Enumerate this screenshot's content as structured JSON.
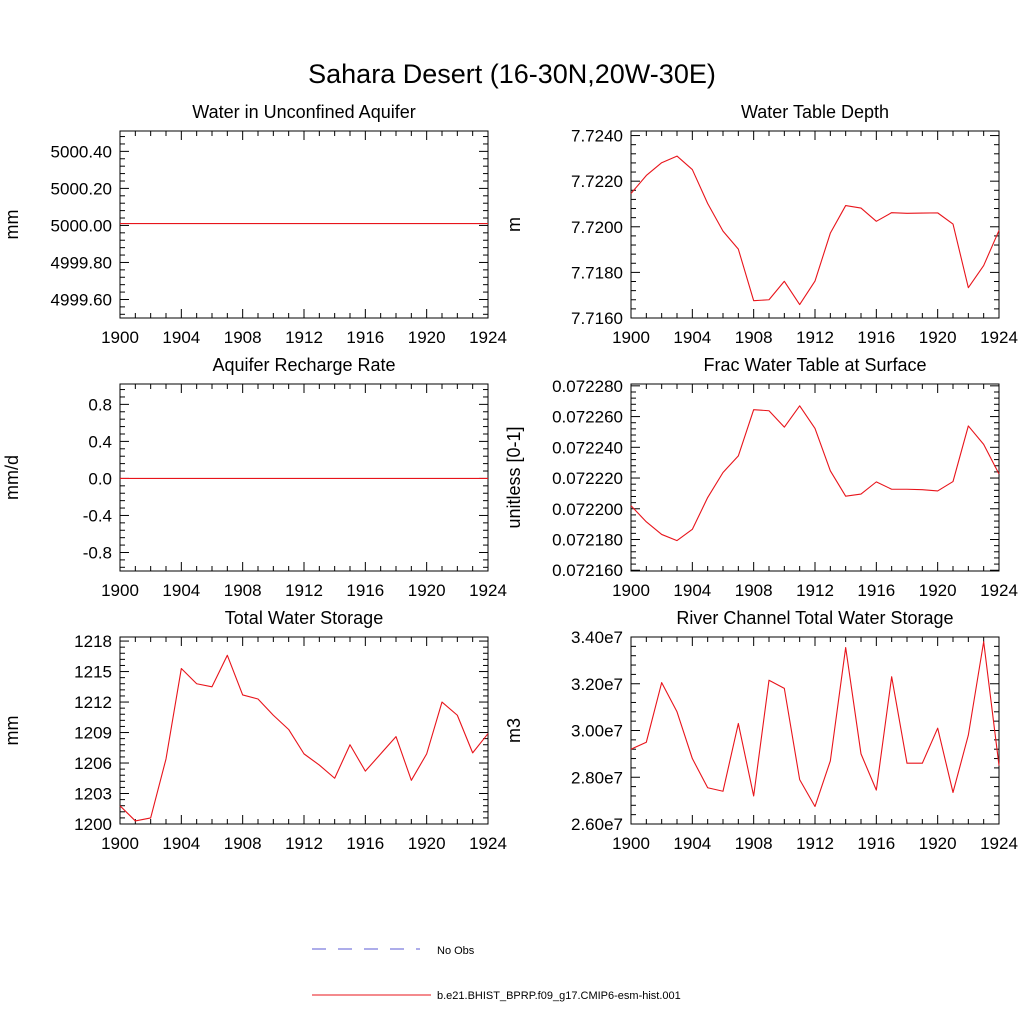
{
  "figure": {
    "title": "Sahara Desert (16-30N,20W-30E)",
    "series_color": "#e8141b",
    "obs_color": "#5b5bd6",
    "legend": [
      {
        "label": "No Obs",
        "style": "dashed",
        "color": "#5b5bd6"
      },
      {
        "label": "b.e21.BHIST_BPRP.f09_g17.CMIP6-esm-hist.001",
        "style": "solid",
        "color": "#e8141b"
      }
    ]
  },
  "chart_data": [
    {
      "type": "line",
      "title": "Water in Unconfined Aquifer",
      "ylabel": "mm",
      "xlim": [
        1900,
        1924
      ],
      "ylim": [
        4999.5,
        5000.51
      ],
      "xticks": [
        1900,
        1904,
        1908,
        1912,
        1916,
        1920,
        1924
      ],
      "yticks": [
        4999.6,
        4999.8,
        5000.0,
        5000.2,
        5000.4
      ],
      "ytick_labels": [
        "4999.60",
        "4999.80",
        "5000.00",
        "5000.20",
        "5000.40"
      ],
      "x": [
        1900,
        1924
      ],
      "series": [
        {
          "values": [
            5000.01,
            5000.01
          ]
        }
      ]
    },
    {
      "type": "line",
      "title": "Water Table Depth",
      "ylabel": "m",
      "xlim": [
        1900,
        1924
      ],
      "ylim": [
        7.716,
        7.7242
      ],
      "xticks": [
        1900,
        1904,
        1908,
        1912,
        1916,
        1920,
        1924
      ],
      "yticks": [
        7.716,
        7.718,
        7.72,
        7.722,
        7.724
      ],
      "ytick_labels": [
        "7.7160",
        "7.7180",
        "7.7200",
        "7.7220",
        "7.7240"
      ],
      "x": [
        1900,
        1901,
        1902,
        1903,
        1904,
        1905,
        1906,
        1907,
        1908,
        1909,
        1910,
        1911,
        1912,
        1913,
        1914,
        1915,
        1916,
        1917,
        1918,
        1919,
        1920,
        1921,
        1922,
        1923,
        1924
      ],
      "series": [
        {
          "values": [
            7.72146,
            7.72225,
            7.72281,
            7.7231,
            7.72251,
            7.72102,
            7.71981,
            7.71902,
            7.71676,
            7.7168,
            7.71761,
            7.71659,
            7.71762,
            7.71972,
            7.72093,
            7.72082,
            7.72024,
            7.72062,
            7.72059,
            7.7206,
            7.72061,
            7.72012,
            7.71733,
            7.7183,
            7.71984
          ]
        }
      ]
    },
    {
      "type": "line",
      "title": "Aquifer Recharge Rate",
      "ylabel": "mm/d",
      "xlim": [
        1900,
        1924
      ],
      "ylim": [
        -1.0,
        1.02
      ],
      "xticks": [
        1900,
        1904,
        1908,
        1912,
        1916,
        1920,
        1924
      ],
      "yticks": [
        -0.8,
        -0.4,
        0.0,
        0.4,
        0.8
      ],
      "ytick_labels": [
        "-0.8",
        "-0.4",
        "0.0",
        "0.4",
        "0.8"
      ],
      "x": [
        1900,
        1924
      ],
      "series": [
        {
          "values": [
            0.0,
            0.0
          ]
        }
      ]
    },
    {
      "type": "line",
      "title": "Frac Water Table at Surface",
      "ylabel": "unitless [0-1]",
      "xlim": [
        1900,
        1924
      ],
      "ylim": [
        0.0721595,
        0.0722812
      ],
      "xticks": [
        1900,
        1904,
        1908,
        1912,
        1916,
        1920,
        1924
      ],
      "yticks": [
        0.07216,
        0.07218,
        0.0722,
        0.07222,
        0.07224,
        0.07226,
        0.07228
      ],
      "ytick_labels": [
        "0.072160",
        "0.072180",
        "0.072200",
        "0.072220",
        "0.072240",
        "0.072260",
        "0.072280"
      ],
      "x": [
        1900,
        1901,
        1902,
        1903,
        1904,
        1905,
        1906,
        1907,
        1908,
        1909,
        1910,
        1911,
        1912,
        1913,
        1914,
        1915,
        1916,
        1917,
        1918,
        1919,
        1920,
        1921,
        1922,
        1923,
        1924
      ],
      "series": [
        {
          "values": [
            0.072202,
            0.0721915,
            0.0721833,
            0.0721793,
            0.0721866,
            0.0722073,
            0.0722236,
            0.0722344,
            0.0722645,
            0.0722638,
            0.0722531,
            0.072267,
            0.0722523,
            0.0722247,
            0.0722082,
            0.0722096,
            0.0722175,
            0.0722127,
            0.0722127,
            0.0722124,
            0.0722116,
            0.0722177,
            0.0722539,
            0.0722419,
            0.0722226
          ]
        }
      ]
    },
    {
      "type": "line",
      "title": "Total Water Storage",
      "ylabel": "mm",
      "xlim": [
        1900,
        1924
      ],
      "ylim": [
        1200,
        1218.4
      ],
      "xticks": [
        1900,
        1904,
        1908,
        1912,
        1916,
        1920,
        1924
      ],
      "yticks": [
        1200,
        1203,
        1206,
        1209,
        1212,
        1215,
        1218
      ],
      "ytick_labels": [
        "1200",
        "1203",
        "1206",
        "1209",
        "1212",
        "1215",
        "1218"
      ],
      "x": [
        1900,
        1901,
        1902,
        1903,
        1904,
        1905,
        1906,
        1907,
        1908,
        1909,
        1910,
        1911,
        1912,
        1913,
        1914,
        1915,
        1916,
        1917,
        1918,
        1919,
        1920,
        1921,
        1922,
        1923,
        1924
      ],
      "series": [
        {
          "values": [
            1201.8,
            1200.3,
            1200.6,
            1206.4,
            1215.3,
            1213.8,
            1213.5,
            1216.6,
            1212.7,
            1212.3,
            1210.7,
            1209.3,
            1206.9,
            1205.8,
            1204.5,
            1207.8,
            1205.2,
            1206.9,
            1208.6,
            1204.3,
            1206.9,
            1212.0,
            1210.7,
            1207.0,
            1208.9
          ]
        }
      ]
    },
    {
      "type": "line",
      "title": "River Channel Total Water Storage",
      "ylabel": "m3",
      "xlim": [
        1900,
        1924
      ],
      "ylim": [
        26000000,
        34000000
      ],
      "xticks": [
        1900,
        1904,
        1908,
        1912,
        1916,
        1920,
        1924
      ],
      "yticks": [
        26000000,
        28000000,
        30000000,
        32000000,
        34000000
      ],
      "ytick_labels": [
        "2.60e7",
        "2.80e7",
        "3.00e7",
        "3.20e7",
        "3.40e7"
      ],
      "x": [
        1900,
        1901,
        1902,
        1903,
        1904,
        1905,
        1906,
        1907,
        1908,
        1909,
        1910,
        1911,
        1912,
        1913,
        1914,
        1915,
        1916,
        1917,
        1918,
        1919,
        1920,
        1921,
        1922,
        1923,
        1924
      ],
      "series": [
        {
          "values": [
            29200000,
            29500000,
            32050000,
            30800000,
            28800000,
            27550000,
            27400000,
            30300000,
            27200000,
            32150000,
            31800000,
            27900000,
            26750000,
            28700000,
            33550000,
            29000000,
            27450000,
            32300000,
            28600000,
            28600000,
            30100000,
            27350000,
            29800000,
            33800000,
            28500000
          ]
        }
      ]
    }
  ]
}
